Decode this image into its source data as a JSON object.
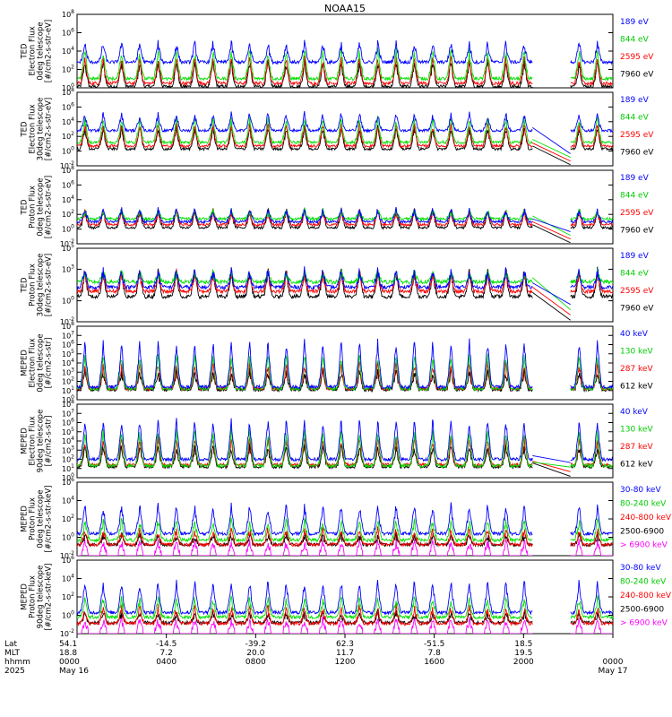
{
  "title": "NOAA15",
  "colors": {
    "black": "#000000",
    "red": "#ff0000",
    "green": "#00ff00",
    "blue": "#0000ff",
    "magenta": "#ff00ff"
  },
  "chart_data": [
    {
      "type": "line",
      "ylabel": [
        "TED",
        "Electron Flux",
        "0deg telescope",
        "[#/cm2-s-str-eV]"
      ],
      "ylim": [
        1,
        100000000
      ],
      "yscale": "log",
      "yticks": [
        {
          "exp": 0
        },
        {
          "exp": 2
        },
        {
          "exp": 4
        },
        {
          "exp": 6
        },
        {
          "exp": 8
        }
      ],
      "series": [
        {
          "name": "7960 eV",
          "color": "black",
          "base": 0.15,
          "peak": 2.8
        },
        {
          "name": "2595 eV",
          "color": "red",
          "base": 0.5,
          "peak": 3.2
        },
        {
          "name": "844 eV",
          "color": "green",
          "base": 1.0,
          "peak": 4.0
        },
        {
          "name": "189 eV",
          "color": "blue",
          "base": 2.8,
          "peak": 4.8
        }
      ]
    },
    {
      "type": "line",
      "ylabel": [
        "TED",
        "Electron Flux",
        "30deg telescope",
        "[#/cm2-s-str-eV]"
      ],
      "ylim": [
        0.01,
        100000000
      ],
      "yscale": "log",
      "yticks": [
        {
          "exp": -2
        },
        {
          "exp": 0
        },
        {
          "exp": 2
        },
        {
          "exp": 4
        },
        {
          "exp": 6
        },
        {
          "exp": 8
        }
      ],
      "series": [
        {
          "name": "7960 eV",
          "color": "black",
          "base": 0.3,
          "peak": 3.2
        },
        {
          "name": "2595 eV",
          "color": "red",
          "base": 0.7,
          "peak": 3.6
        },
        {
          "name": "844 eV",
          "color": "green",
          "base": 1.2,
          "peak": 4.4
        },
        {
          "name": "189 eV",
          "color": "blue",
          "base": 2.8,
          "peak": 5.0
        }
      ]
    },
    {
      "type": "line",
      "ylabel": [
        "TED",
        "Proton Flux",
        "0deg telescope",
        "[#/cm2-s-str-eV]"
      ],
      "ylim": [
        0.01,
        100000000
      ],
      "yscale": "log",
      "yticks": [
        {
          "exp": -2
        },
        {
          "exp": 0
        },
        {
          "exp": 2
        },
        {
          "exp": 4
        },
        {
          "exp": 6
        },
        {
          "exp": 8
        }
      ],
      "series": [
        {
          "name": "7960 eV",
          "color": "black",
          "base": 0.2,
          "peak": 2.6
        },
        {
          "name": "2595 eV",
          "color": "red",
          "base": 0.6,
          "peak": 2.4
        },
        {
          "name": "844 eV",
          "color": "green",
          "base": 1.4,
          "peak": 2.4
        },
        {
          "name": "189 eV",
          "color": "blue",
          "base": 1.0,
          "peak": 2.6
        }
      ]
    },
    {
      "type": "line",
      "ylabel": [
        "TED",
        "Proton Flux",
        "30deg telescope",
        "[#/cm2-s-str-eV]"
      ],
      "ylim": [
        0.01,
        100000
      ],
      "yscale": "log",
      "yticks": [
        {
          "exp": -2
        },
        {
          "exp": 0
        },
        {
          "exp": 3
        },
        {
          "exp": 5
        }
      ],
      "series": [
        {
          "name": "7960 eV",
          "color": "black",
          "base": 0.4,
          "peak": 2.8
        },
        {
          "name": "2595 eV",
          "color": "red",
          "base": 0.9,
          "peak": 2.6
        },
        {
          "name": "844 eV",
          "color": "green",
          "base": 1.8,
          "peak": 2.6
        },
        {
          "name": "189 eV",
          "color": "blue",
          "base": 1.3,
          "peak": 2.8
        }
      ]
    },
    {
      "type": "line",
      "ylabel": [
        "MEPED",
        "Electron Flux",
        "0deg telescope",
        "[#/cm2-s-str]"
      ],
      "ylim": [
        1,
        100000000
      ],
      "yscale": "log",
      "yticks": [
        {
          "exp": 0
        },
        {
          "exp": 1
        },
        {
          "exp": 2
        },
        {
          "exp": 3
        },
        {
          "exp": 4
        },
        {
          "exp": 5
        },
        {
          "exp": 6
        },
        {
          "exp": 7
        },
        {
          "exp": 8
        }
      ],
      "series": [
        {
          "name": "612 keV",
          "color": "black",
          "base": 1.1,
          "peak": 3.0
        },
        {
          "name": "287 keV",
          "color": "red",
          "base": 1.2,
          "peak": 3.8
        },
        {
          "name": "130 keV",
          "color": "green",
          "base": 1.2,
          "peak": 4.8
        },
        {
          "name": "40 keV",
          "color": "blue",
          "base": 1.4,
          "peak": 6.3
        }
      ]
    },
    {
      "type": "line",
      "ylabel": [
        "MEPED",
        "Electron Flux",
        "90deg telescope",
        "[#/cm2-s-str]"
      ],
      "ylim": [
        1,
        100000000
      ],
      "yscale": "log",
      "yticks": [
        {
          "exp": 0
        },
        {
          "exp": 1
        },
        {
          "exp": 2
        },
        {
          "exp": 3
        },
        {
          "exp": 4
        },
        {
          "exp": 5
        },
        {
          "exp": 6
        },
        {
          "exp": 7
        },
        {
          "exp": 8
        }
      ],
      "series": [
        {
          "name": "612 keV",
          "color": "black",
          "base": 1.2,
          "peak": 3.4
        },
        {
          "name": "287 keV",
          "color": "red",
          "base": 1.4,
          "peak": 4.2
        },
        {
          "name": "130 keV",
          "color": "green",
          "base": 1.3,
          "peak": 5.0
        },
        {
          "name": "40 keV",
          "color": "blue",
          "base": 2.0,
          "peak": 6.2
        }
      ]
    },
    {
      "type": "line",
      "ylabel": [
        "MEPED",
        "Proton Flux",
        "0deg telescope",
        "[#/cm2-s-str-keV]"
      ],
      "ylim": [
        0.01,
        1000000
      ],
      "yscale": "log",
      "yticks": [
        {
          "exp": -2
        },
        {
          "exp": 0
        },
        {
          "exp": 2
        },
        {
          "exp": 4
        },
        {
          "exp": 6
        }
      ],
      "series": [
        {
          "name": "> 6900 keV",
          "color": "magenta",
          "base": -1.8,
          "peak": -0.6
        },
        {
          "name": "2500-6900",
          "color": "black",
          "base": -0.8,
          "peak": 0.2
        },
        {
          "name": "240-800 keV",
          "color": "red",
          "base": -0.8,
          "peak": 0.8
        },
        {
          "name": "80-240 keV",
          "color": "green",
          "base": -0.3,
          "peak": 1.8
        },
        {
          "name": "30-80 keV",
          "color": "blue",
          "base": 0.4,
          "peak": 3.4
        }
      ]
    },
    {
      "type": "line",
      "ylabel": [
        "MEPED",
        "Proton Flux",
        "90deg telescope",
        "[#/cm2-s-str-keV]"
      ],
      "ylim": [
        0.01,
        1000000
      ],
      "yscale": "log",
      "yticks": [
        {
          "exp": -2
        },
        {
          "exp": 0
        },
        {
          "exp": 2
        },
        {
          "exp": 4
        },
        {
          "exp": 6
        }
      ],
      "series": [
        {
          "name": "> 6900 keV",
          "color": "magenta",
          "base": -1.8,
          "peak": -0.6
        },
        {
          "name": "2500-6900",
          "color": "black",
          "base": -0.8,
          "peak": 0.2
        },
        {
          "name": "240-800 keV",
          "color": "red",
          "base": -0.9,
          "peak": 0.8
        },
        {
          "name": "80-240 keV",
          "color": "green",
          "base": -0.2,
          "peak": 1.8
        },
        {
          "name": "30-80 keV",
          "color": "blue",
          "base": 0.3,
          "peak": 3.6
        }
      ]
    }
  ],
  "time_axis": {
    "start": "2025-05-16 00:00",
    "end": "2025-05-17 00:00",
    "data_gap_hours": [
      20.4,
      22.1
    ],
    "row_labels": [
      "Lat",
      "MLT",
      "hhmm",
      "2025"
    ],
    "columns": [
      {
        "hours": 0,
        "lat": "54.1",
        "mlt": "18.8",
        "hhmm": "0000",
        "date": "May 16"
      },
      {
        "hours": 4,
        "lat": "-14.5",
        "mlt": "7.2",
        "hhmm": "0400",
        "date": ""
      },
      {
        "hours": 8,
        "lat": "-39.2",
        "mlt": "20.0",
        "hhmm": "0800",
        "date": ""
      },
      {
        "hours": 12,
        "lat": "62.3",
        "mlt": "11.7",
        "hhmm": "1200",
        "date": ""
      },
      {
        "hours": 16,
        "lat": "-51.5",
        "mlt": "7.8",
        "hhmm": "1600",
        "date": ""
      },
      {
        "hours": 20,
        "lat": "18.5",
        "mlt": "19.5",
        "hhmm": "2000",
        "date": ""
      },
      {
        "hours": 24,
        "lat": "",
        "mlt": "",
        "hhmm": "0000",
        "date": "May 17"
      }
    ]
  }
}
